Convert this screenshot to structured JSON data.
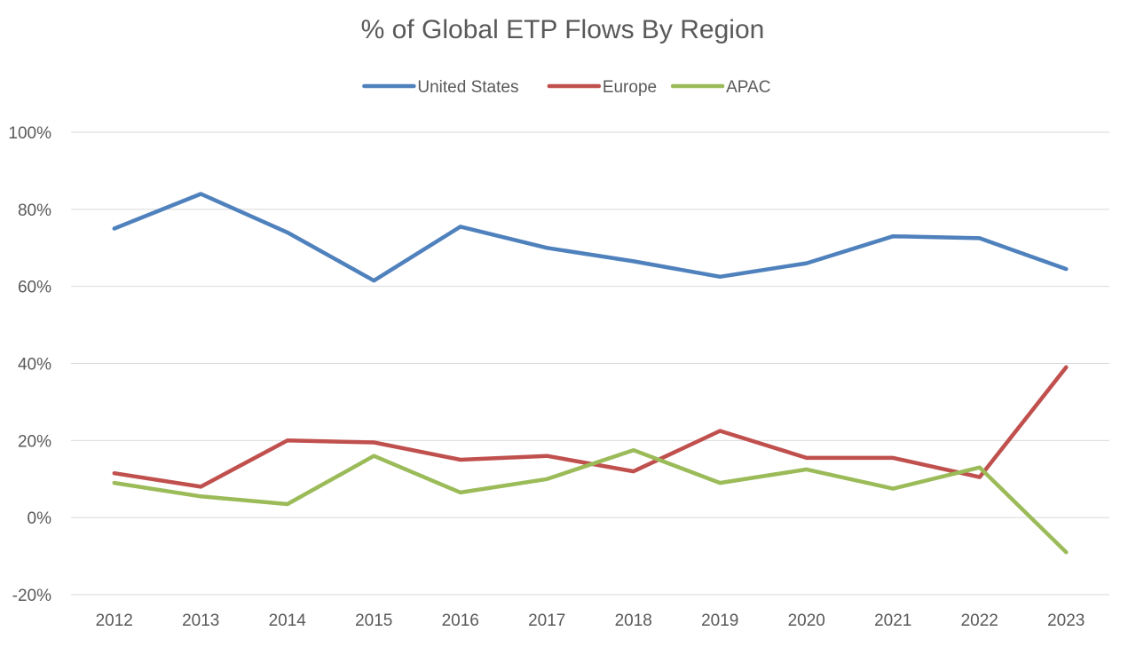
{
  "chart_data": {
    "type": "line",
    "title": "% of Global ETP Flows By Region",
    "xlabel": "",
    "ylabel": "",
    "x": [
      "2012",
      "2013",
      "2014",
      "2015",
      "2016",
      "2017",
      "2018",
      "2019",
      "2020",
      "2021",
      "2022",
      "2023"
    ],
    "ylim": [
      -20,
      100
    ],
    "yticks": [
      "-20%",
      "0%",
      "20%",
      "40%",
      "60%",
      "80%",
      "100%"
    ],
    "grid": true,
    "legend_position": "top",
    "series": [
      {
        "name": "United States",
        "color": "#4f81bd",
        "values": [
          75,
          84,
          74,
          61.5,
          75.5,
          70,
          66.5,
          62.5,
          66,
          73,
          72.5,
          64.5
        ]
      },
      {
        "name": "Europe",
        "color": "#c0504d",
        "values": [
          11.5,
          8,
          20,
          19.5,
          15,
          16,
          12,
          22.5,
          15.5,
          15.5,
          10.5,
          39
        ]
      },
      {
        "name": "APAC",
        "color": "#9bbb59",
        "values": [
          9,
          5.5,
          3.5,
          16,
          6.5,
          10,
          17.5,
          9,
          12.5,
          7.5,
          13,
          -9
        ]
      }
    ]
  }
}
